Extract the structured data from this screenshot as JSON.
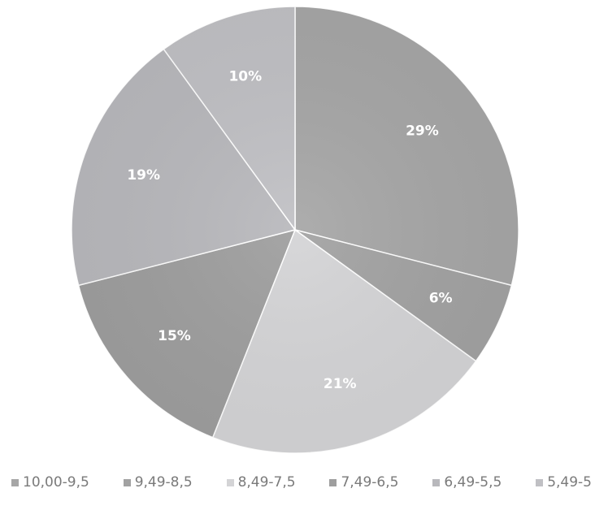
{
  "chart_data": {
    "type": "pie",
    "title": "",
    "start_angle_deg": 0,
    "direction": "clockwise",
    "slices": [
      {
        "label": "10,00-9,5",
        "value": 29,
        "display": "29%",
        "color": "#a6a6a6"
      },
      {
        "label": "9,49-8,5",
        "value": 6,
        "display": "6%",
        "color": "#a2a2a2"
      },
      {
        "label": "8,49-7,5",
        "value": 21,
        "display": "21%",
        "color": "#d4d4d6"
      },
      {
        "label": "7,49-6,5",
        "value": 15,
        "display": "15%",
        "color": "#9e9e9e"
      },
      {
        "label": "6,49-5,5",
        "value": 19,
        "display": "19%",
        "color": "#b8b8bc"
      },
      {
        "label": "5,49-5",
        "value": 10,
        "display": "10%",
        "color": "#c0c0c4"
      }
    ],
    "legend_position": "bottom",
    "label_color": "#ffffff"
  }
}
